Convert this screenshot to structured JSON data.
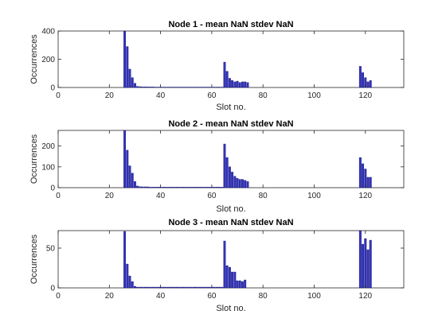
{
  "chart_data": [
    {
      "type": "bar",
      "title": "Node 1 - mean NaN stdev NaN",
      "xlabel": "Slot no.",
      "ylabel": "Occurrences",
      "xlim": [
        0,
        135
      ],
      "ylim": [
        0,
        400
      ],
      "xticks": [
        0,
        20,
        40,
        60,
        80,
        100,
        120
      ],
      "yticks": [
        0,
        200,
        400
      ],
      "bar_color": "#3333bb",
      "x": [
        26,
        27,
        28,
        29,
        30,
        31,
        32,
        33,
        34,
        35,
        36,
        37,
        38,
        39,
        40,
        41,
        42,
        43,
        44,
        45,
        46,
        47,
        48,
        49,
        50,
        51,
        52,
        53,
        54,
        55,
        56,
        57,
        58,
        59,
        60,
        61,
        62,
        63,
        64,
        65,
        66,
        67,
        68,
        69,
        70,
        71,
        72,
        73,
        74,
        118,
        119,
        120,
        121,
        122
      ],
      "values": [
        400,
        290,
        130,
        70,
        30,
        8,
        6,
        5,
        5,
        4,
        4,
        4,
        3,
        3,
        3,
        3,
        3,
        3,
        3,
        3,
        3,
        3,
        3,
        3,
        3,
        3,
        3,
        3,
        3,
        3,
        3,
        3,
        3,
        3,
        3,
        3,
        3,
        3,
        3,
        180,
        115,
        65,
        50,
        40,
        45,
        35,
        40,
        40,
        35,
        150,
        105,
        70,
        40,
        50
      ]
    },
    {
      "type": "bar",
      "title": "Node 2 - mean NaN stdev NaN",
      "xlabel": "Slot no.",
      "ylabel": "Occurrences",
      "xlim": [
        0,
        135
      ],
      "ylim": [
        0,
        275
      ],
      "xticks": [
        0,
        20,
        40,
        60,
        80,
        100,
        120
      ],
      "yticks": [
        0,
        100,
        200
      ],
      "bar_color": "#3333bb",
      "x": [
        26,
        27,
        28,
        29,
        30,
        31,
        32,
        33,
        34,
        35,
        36,
        37,
        38,
        39,
        40,
        41,
        42,
        43,
        44,
        45,
        46,
        47,
        48,
        49,
        50,
        51,
        52,
        53,
        54,
        55,
        56,
        57,
        58,
        59,
        60,
        61,
        62,
        63,
        64,
        65,
        66,
        67,
        68,
        69,
        70,
        71,
        72,
        73,
        74,
        118,
        119,
        120,
        121,
        122
      ],
      "values": [
        275,
        180,
        105,
        70,
        30,
        8,
        5,
        4,
        4,
        4,
        3,
        3,
        3,
        3,
        3,
        3,
        3,
        3,
        3,
        3,
        3,
        3,
        3,
        3,
        3,
        3,
        3,
        3,
        3,
        3,
        3,
        3,
        3,
        3,
        3,
        3,
        3,
        3,
        3,
        210,
        145,
        100,
        75,
        55,
        45,
        40,
        40,
        35,
        30,
        145,
        115,
        90,
        50,
        50
      ]
    },
    {
      "type": "bar",
      "title": "Node 3 - mean NaN stdev NaN",
      "xlabel": "Slot no.",
      "ylabel": "Occurrences",
      "xlim": [
        0,
        135
      ],
      "ylim": [
        0,
        72
      ],
      "xticks": [
        0,
        20,
        40,
        60,
        80,
        100,
        120
      ],
      "yticks": [
        0,
        50
      ],
      "bar_color": "#3333bb",
      "x": [
        26,
        27,
        28,
        29,
        30,
        31,
        32,
        33,
        34,
        35,
        36,
        37,
        38,
        39,
        40,
        41,
        42,
        43,
        44,
        45,
        46,
        47,
        48,
        49,
        50,
        51,
        52,
        53,
        54,
        55,
        56,
        57,
        58,
        59,
        60,
        61,
        62,
        63,
        64,
        65,
        66,
        67,
        68,
        69,
        70,
        71,
        72,
        73,
        74,
        118,
        119,
        120,
        121,
        122
      ],
      "values": [
        71,
        30,
        15,
        8,
        2,
        1,
        1,
        1,
        1,
        1,
        1,
        1,
        1,
        1,
        1,
        1,
        1,
        1,
        1,
        1,
        1,
        1,
        1,
        1,
        1,
        1,
        1,
        1,
        1,
        1,
        1,
        1,
        1,
        1,
        1,
        1,
        1,
        1,
        1,
        59,
        28,
        26,
        20,
        20,
        9,
        9,
        8,
        10,
        0,
        72,
        55,
        62,
        48,
        60
      ]
    }
  ]
}
